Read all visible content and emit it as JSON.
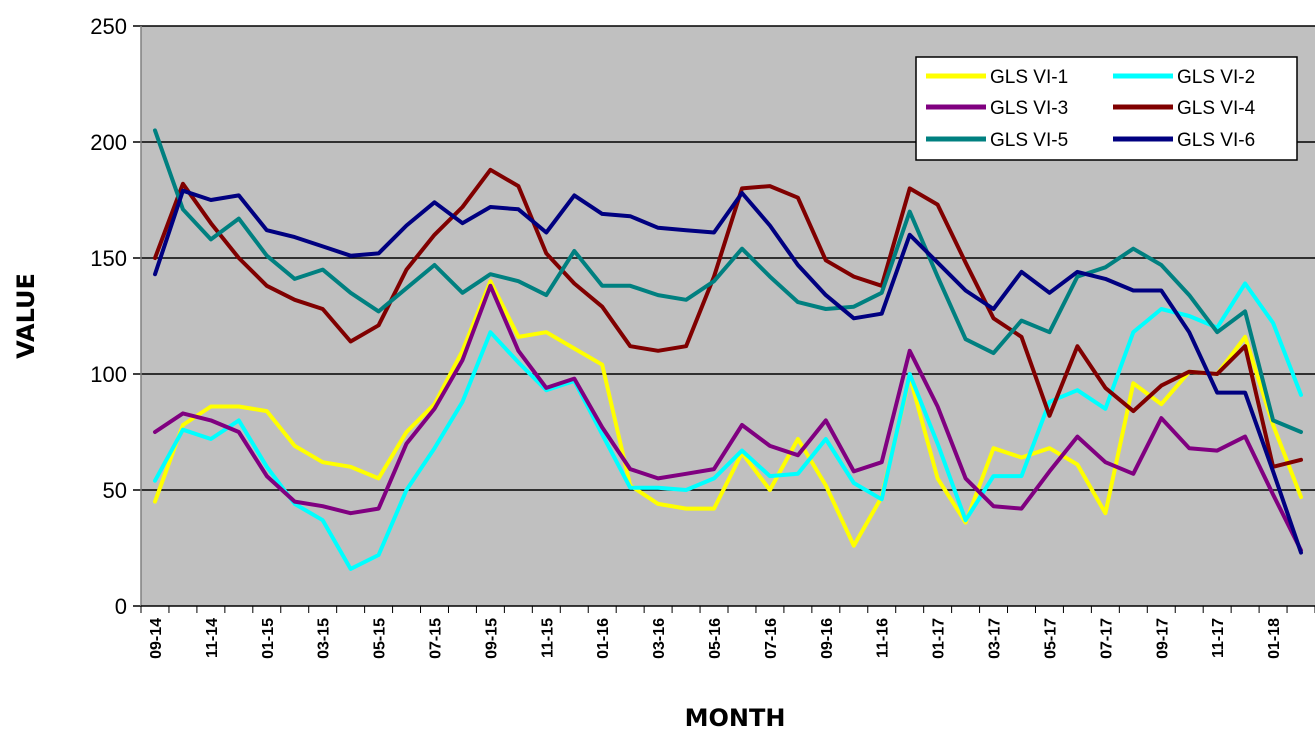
{
  "chart_data": {
    "type": "line",
    "title": "",
    "xlabel": "MONTH",
    "ylabel": "VALUE",
    "ylim": [
      0,
      250
    ],
    "yticks": [
      "0",
      "50",
      "100",
      "150",
      "200",
      "250"
    ],
    "grid": "horizontal",
    "legend_position": "top-right",
    "background": "#c0c0c0",
    "x": [
      "09-14",
      "10-14",
      "11-14",
      "12-14",
      "01-15",
      "02-15",
      "03-15",
      "04-15",
      "05-15",
      "06-15",
      "07-15",
      "08-15",
      "09-15",
      "10-15",
      "11-15",
      "12-15",
      "01-16",
      "02-16",
      "03-16",
      "04-16",
      "05-16",
      "06-16",
      "07-16",
      "08-16",
      "09-16",
      "10-16",
      "11-16",
      "12-16",
      "01-17",
      "02-17",
      "03-17",
      "04-17",
      "05-17",
      "06-17",
      "07-17",
      "08-17",
      "09-17",
      "10-17",
      "11-17",
      "12-17",
      "01-18",
      "02-18"
    ],
    "x_tick_labels": [
      "09-14",
      "11-14",
      "01-15",
      "03-15",
      "05-15",
      "07-15",
      "09-15",
      "11-15",
      "01-16",
      "03-16",
      "05-16",
      "07-16",
      "09-16",
      "11-16",
      "01-17",
      "03-17",
      "05-17",
      "07-17",
      "09-17",
      "11-17",
      "01-18"
    ],
    "series": [
      {
        "name": "GLS VI-1",
        "color": "#ffff00",
        "values": [
          45,
          78,
          86,
          86,
          84,
          69,
          62,
          60,
          55,
          75,
          87,
          110,
          140,
          116,
          118,
          111,
          104,
          52,
          44,
          42,
          42,
          66,
          50,
          72,
          52,
          26,
          47,
          99,
          55,
          36,
          68,
          64,
          68,
          61,
          40,
          96,
          87,
          101,
          100,
          116,
          78,
          47
        ]
      },
      {
        "name": "GLS VI-2",
        "color": "#00ffff",
        "values": [
          54,
          76,
          72,
          80,
          60,
          44,
          37,
          16,
          22,
          50,
          68,
          88,
          118,
          105,
          93,
          97,
          74,
          51,
          51,
          50,
          55,
          67,
          56,
          57,
          72,
          53,
          46,
          100,
          70,
          37,
          56,
          56,
          88,
          93,
          85,
          118,
          128,
          125,
          120,
          139,
          122,
          91
        ]
      },
      {
        "name": "GLS VI-3",
        "color": "#800080",
        "values": [
          75,
          83,
          80,
          75,
          56,
          45,
          43,
          40,
          42,
          70,
          85,
          106,
          138,
          110,
          94,
          98,
          77,
          59,
          55,
          57,
          59,
          78,
          69,
          65,
          80,
          58,
          62,
          110,
          86,
          55,
          43,
          42,
          58,
          73,
          62,
          57,
          81,
          68,
          67,
          73,
          48,
          24
        ]
      },
      {
        "name": "GLS VI-4",
        "color": "#800000",
        "values": [
          150,
          182,
          165,
          150,
          138,
          132,
          128,
          114,
          121,
          145,
          160,
          172,
          188,
          181,
          152,
          139,
          129,
          112,
          110,
          112,
          142,
          180,
          181,
          176,
          149,
          142,
          138,
          180,
          173,
          148,
          124,
          116,
          82,
          112,
          94,
          84,
          95,
          101,
          100,
          112,
          60,
          63
        ]
      },
      {
        "name": "GLS VI-5",
        "color": "#008080",
        "values": [
          205,
          171,
          158,
          167,
          151,
          141,
          145,
          135,
          127,
          137,
          147,
          135,
          143,
          140,
          134,
          153,
          138,
          138,
          134,
          132,
          140,
          154,
          142,
          131,
          128,
          129,
          135,
          170,
          142,
          115,
          109,
          123,
          118,
          142,
          146,
          154,
          147,
          134,
          118,
          127,
          80,
          75
        ]
      },
      {
        "name": "GLS VI-6",
        "color": "#000080",
        "values": [
          143,
          179,
          175,
          177,
          162,
          159,
          155,
          151,
          152,
          164,
          174,
          165,
          172,
          171,
          161,
          177,
          169,
          168,
          163,
          162,
          161,
          178,
          164,
          147,
          134,
          124,
          126,
          160,
          148,
          136,
          128,
          144,
          135,
          144,
          141,
          136,
          136,
          118,
          92,
          92,
          58,
          23
        ]
      }
    ]
  }
}
